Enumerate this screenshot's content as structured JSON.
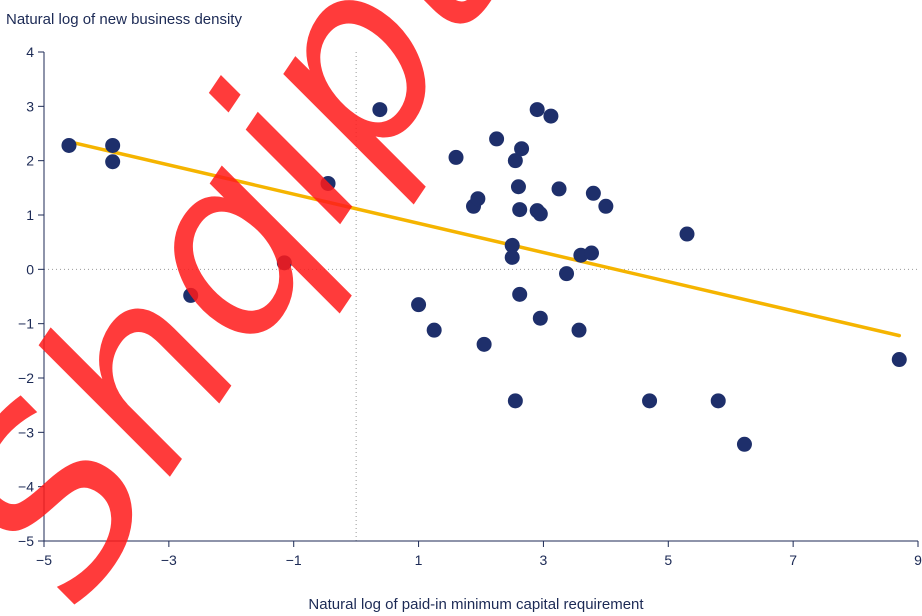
{
  "chart_data": {
    "type": "scatter",
    "title": "",
    "ylabel": "Natural log of new business density",
    "xlabel": "Natural log of paid-in minimum capital requirement",
    "xlim": [
      -5,
      9
    ],
    "ylim": [
      -5,
      4
    ],
    "x_ticks": [
      -5,
      -3,
      -1,
      1,
      3,
      5,
      7,
      9
    ],
    "x_tick_labels": [
      "−5",
      "−3",
      "−1",
      "1",
      "3",
      "5",
      "7",
      "9"
    ],
    "y_ticks": [
      -5,
      -4,
      -3,
      -2,
      -1,
      0,
      1,
      2,
      3,
      4
    ],
    "y_tick_labels": [
      "−5",
      "−4",
      "−3",
      "−2",
      "−1",
      "0",
      "1",
      "2",
      "3",
      "4"
    ],
    "reference_lines": {
      "x": 0,
      "y": 0,
      "style": "dotted"
    },
    "trend_line": {
      "x": [
        -4.6,
        8.7
      ],
      "y": [
        2.35,
        -1.22
      ],
      "color": "#f5b400"
    },
    "point_color": "#1e2f6b",
    "points": [
      {
        "x": -4.6,
        "y": 2.28
      },
      {
        "x": -3.9,
        "y": 2.28
      },
      {
        "x": -3.9,
        "y": 1.98
      },
      {
        "x": -2.65,
        "y": -0.48
      },
      {
        "x": -1.15,
        "y": 0.12
      },
      {
        "x": -0.45,
        "y": 1.58
      },
      {
        "x": 0.38,
        "y": 2.94
      },
      {
        "x": 1.0,
        "y": -0.65
      },
      {
        "x": 1.25,
        "y": -1.12
      },
      {
        "x": 1.6,
        "y": 2.06
      },
      {
        "x": 1.88,
        "y": 1.16
      },
      {
        "x": 1.95,
        "y": 1.3
      },
      {
        "x": 2.05,
        "y": -1.38
      },
      {
        "x": 2.25,
        "y": 2.4
      },
      {
        "x": 2.5,
        "y": 0.44
      },
      {
        "x": 2.5,
        "y": 0.22
      },
      {
        "x": 2.55,
        "y": 2.0
      },
      {
        "x": 2.55,
        "y": -2.42
      },
      {
        "x": 2.6,
        "y": 1.52
      },
      {
        "x": 2.62,
        "y": 1.1
      },
      {
        "x": 2.62,
        "y": -0.46
      },
      {
        "x": 2.65,
        "y": 2.22
      },
      {
        "x": 2.9,
        "y": 2.94
      },
      {
        "x": 2.9,
        "y": 1.08
      },
      {
        "x": 2.95,
        "y": 1.02
      },
      {
        "x": 2.95,
        "y": -0.9
      },
      {
        "x": 3.12,
        "y": 2.82
      },
      {
        "x": 3.25,
        "y": 1.48
      },
      {
        "x": 3.37,
        "y": -0.08
      },
      {
        "x": 3.57,
        "y": -1.12
      },
      {
        "x": 3.6,
        "y": 0.26
      },
      {
        "x": 3.77,
        "y": 0.3
      },
      {
        "x": 3.8,
        "y": 1.4
      },
      {
        "x": 4.0,
        "y": 1.16
      },
      {
        "x": 4.7,
        "y": -2.42
      },
      {
        "x": 5.3,
        "y": 0.65
      },
      {
        "x": 5.8,
        "y": -2.42
      },
      {
        "x": 6.22,
        "y": -3.22
      },
      {
        "x": 8.7,
        "y": -1.66
      }
    ]
  },
  "watermark": {
    "text": "Shqiptar"
  }
}
